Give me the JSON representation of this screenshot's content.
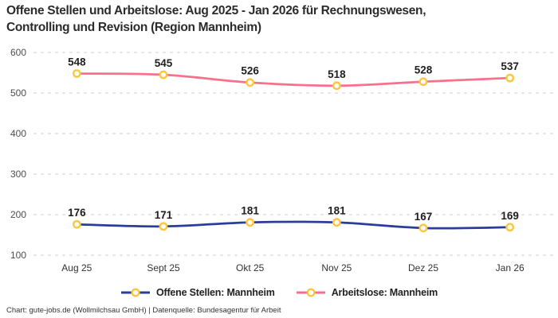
{
  "title": "Offene Stellen und Arbeitslose: Aug 2025 - Jan 2026 für Rechnungswesen,\nControlling und Revision (Region Mannheim)",
  "footer": "Chart: gute-jobs.de (Wollmilchsau GmbH) | Datenquelle: Bundesagentur für Arbeit",
  "colors": {
    "offene_stellen": "#2B3D9B",
    "arbeitslose": "#F8708E",
    "marker_ring": "#FFC53D",
    "marker_fill": "#FFFFFF",
    "gridline": "#CDCDCD",
    "axis_label": "#4D4D4D",
    "category_label": "#333333",
    "value_label": "#1F1F1F"
  },
  "chart_data": {
    "type": "line",
    "title": "Offene Stellen und Arbeitslose: Aug 2025 - Jan 2026 für Rechnungswesen, Controlling und Revision (Region Mannheim)",
    "categories": [
      "Aug 25",
      "Sept 25",
      "Okt 25",
      "Nov 25",
      "Dez 25",
      "Jan 26"
    ],
    "series": [
      {
        "name": "Offene Stellen: Mannheim",
        "color_key": "offene_stellen",
        "values": [
          176,
          171,
          181,
          181,
          167,
          169
        ]
      },
      {
        "name": "Arbeitslose: Mannheim",
        "color_key": "arbeitslose",
        "values": [
          548,
          545,
          526,
          518,
          528,
          537
        ]
      }
    ],
    "ylim": [
      100,
      600
    ],
    "yticks": [
      100,
      200,
      300,
      400,
      500,
      600
    ],
    "grid": "horizontal-dashed",
    "legend_position": "bottom",
    "marker": "circle-gold-ring-white-fill",
    "data_labels": "above-points"
  }
}
